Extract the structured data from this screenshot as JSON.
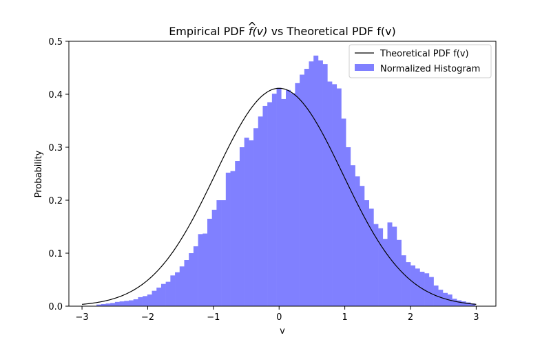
{
  "chart_data": {
    "type": "bar",
    "title": "Empirical PDF f̂(v) vs Theoretical PDF f(v)",
    "title_parts": {
      "before": "Empirical PDF ",
      "func": "f",
      "hat": "^",
      "args": "(v)",
      "after": " vs Theoretical PDF f(v)"
    },
    "xlabel": "v",
    "ylabel": "Probability",
    "xlim": [
      -3.2,
      3.3
    ],
    "ylim": [
      0.0,
      0.5
    ],
    "xticks": [
      -3,
      -2,
      -1,
      0,
      1,
      2,
      3
    ],
    "xtick_labels": [
      "−3",
      "−2",
      "−1",
      "0",
      "1",
      "2",
      "3"
    ],
    "yticks": [
      0.0,
      0.1,
      0.2,
      0.3,
      0.4,
      0.5
    ],
    "ytick_labels": [
      "0.0",
      "0.1",
      "0.2",
      "0.3",
      "0.4",
      "0.5"
    ],
    "grid": false,
    "legend_position": "top-right",
    "histogram": {
      "name": "Normalized Histogram",
      "color": "#8080ff",
      "bin_start": -2.78,
      "bin_width": 0.0703,
      "values": [
        0.003,
        0.004,
        0.005,
        0.006,
        0.008,
        0.009,
        0.01,
        0.011,
        0.013,
        0.017,
        0.019,
        0.022,
        0.029,
        0.035,
        0.042,
        0.046,
        0.058,
        0.064,
        0.075,
        0.087,
        0.1,
        0.113,
        0.136,
        0.137,
        0.165,
        0.182,
        0.2,
        0.2,
        0.252,
        0.255,
        0.274,
        0.3,
        0.318,
        0.313,
        0.336,
        0.358,
        0.378,
        0.385,
        0.401,
        0.412,
        0.391,
        0.408,
        0.402,
        0.421,
        0.437,
        0.448,
        0.462,
        0.473,
        0.464,
        0.457,
        0.424,
        0.419,
        0.411,
        0.354,
        0.3,
        0.266,
        0.245,
        0.227,
        0.2,
        0.184,
        0.155,
        0.147,
        0.127,
        0.158,
        0.15,
        0.125,
        0.096,
        0.083,
        0.077,
        0.071,
        0.065,
        0.062,
        0.055,
        0.039,
        0.031,
        0.025,
        0.022,
        0.014,
        0.011,
        0.009,
        0.007,
        0.005
      ]
    },
    "theoretical": {
      "name": "Theoretical PDF f(v)",
      "color": "#000000",
      "mean": 0.0,
      "std": 0.97,
      "x_range": [
        -3.0,
        3.0
      ]
    }
  }
}
